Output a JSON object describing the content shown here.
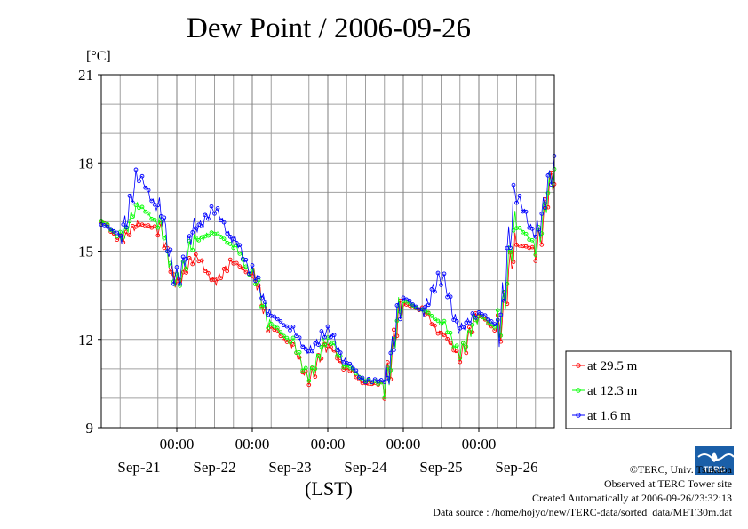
{
  "chart_data": {
    "type": "line",
    "title": "Dew Point / 2006-09-26",
    "ylabel": "[°C]",
    "xlabel": "(LST)",
    "ylim": [
      9,
      21
    ],
    "yticks": [
      9,
      12,
      15,
      18,
      21
    ],
    "xlim_days": [
      0,
      6
    ],
    "xtick_time_label": "00:00",
    "xtick_date_labels": [
      "Sep-21",
      "Sep-22",
      "Sep-23",
      "Sep-24",
      "Sep-25",
      "Sep-26"
    ],
    "xtick_positions_days": [
      1,
      2,
      3,
      4,
      5
    ],
    "grid": true,
    "legend_position": "right",
    "x_days": [
      0,
      0.25,
      0.5,
      0.75,
      1,
      1.25,
      1.5,
      1.75,
      2,
      2.25,
      2.5,
      2.75,
      3,
      3.25,
      3.5,
      3.75,
      4,
      4.25,
      4.5,
      4.75,
      5,
      5.25,
      5.5,
      5.75,
      6
    ],
    "series": [
      {
        "name": "at 29.5 m",
        "color": "#ff0000",
        "values": [
          16.0,
          15.4,
          15.9,
          15.8,
          14.0,
          14.8,
          14.0,
          14.6,
          14.2,
          12.4,
          11.9,
          10.7,
          11.8,
          11.0,
          10.5,
          10.5,
          13.2,
          13.0,
          12.2,
          11.5,
          12.8,
          12.3,
          15.2,
          15.1,
          17.5
        ]
      },
      {
        "name": "at 12.3 m",
        "color": "#00ff00",
        "values": [
          16.0,
          15.5,
          16.5,
          16.0,
          14.0,
          15.4,
          15.6,
          15.2,
          14.2,
          12.5,
          12.0,
          10.8,
          12.0,
          11.1,
          10.6,
          10.5,
          13.3,
          13.0,
          12.6,
          11.6,
          12.8,
          12.4,
          15.8,
          15.3,
          17.6
        ]
      },
      {
        "name": "at 1.6 m",
        "color": "#0000ff",
        "values": [
          15.9,
          15.6,
          17.5,
          16.5,
          14.1,
          15.8,
          16.4,
          15.4,
          14.3,
          12.8,
          12.4,
          11.6,
          12.3,
          11.2,
          10.6,
          10.6,
          13.4,
          13.0,
          14.1,
          12.4,
          12.9,
          12.5,
          16.8,
          15.6,
          17.8
        ]
      }
    ]
  },
  "header": {
    "title": "Dew Point / 2006-09-26",
    "unit": "[°C]"
  },
  "xaxis_caption": "(LST)",
  "logo": {
    "text": "TERC"
  },
  "credits": {
    "line1": "©TERC, Univ. Tsukuba",
    "line2": "Observed at TERC Tower site",
    "line3": "Created Automatically at 2006-09-26/23:32:13",
    "line4": "Data source : /home/hojyo/new/TERC-data/sorted_data/MET.30m.dat"
  }
}
